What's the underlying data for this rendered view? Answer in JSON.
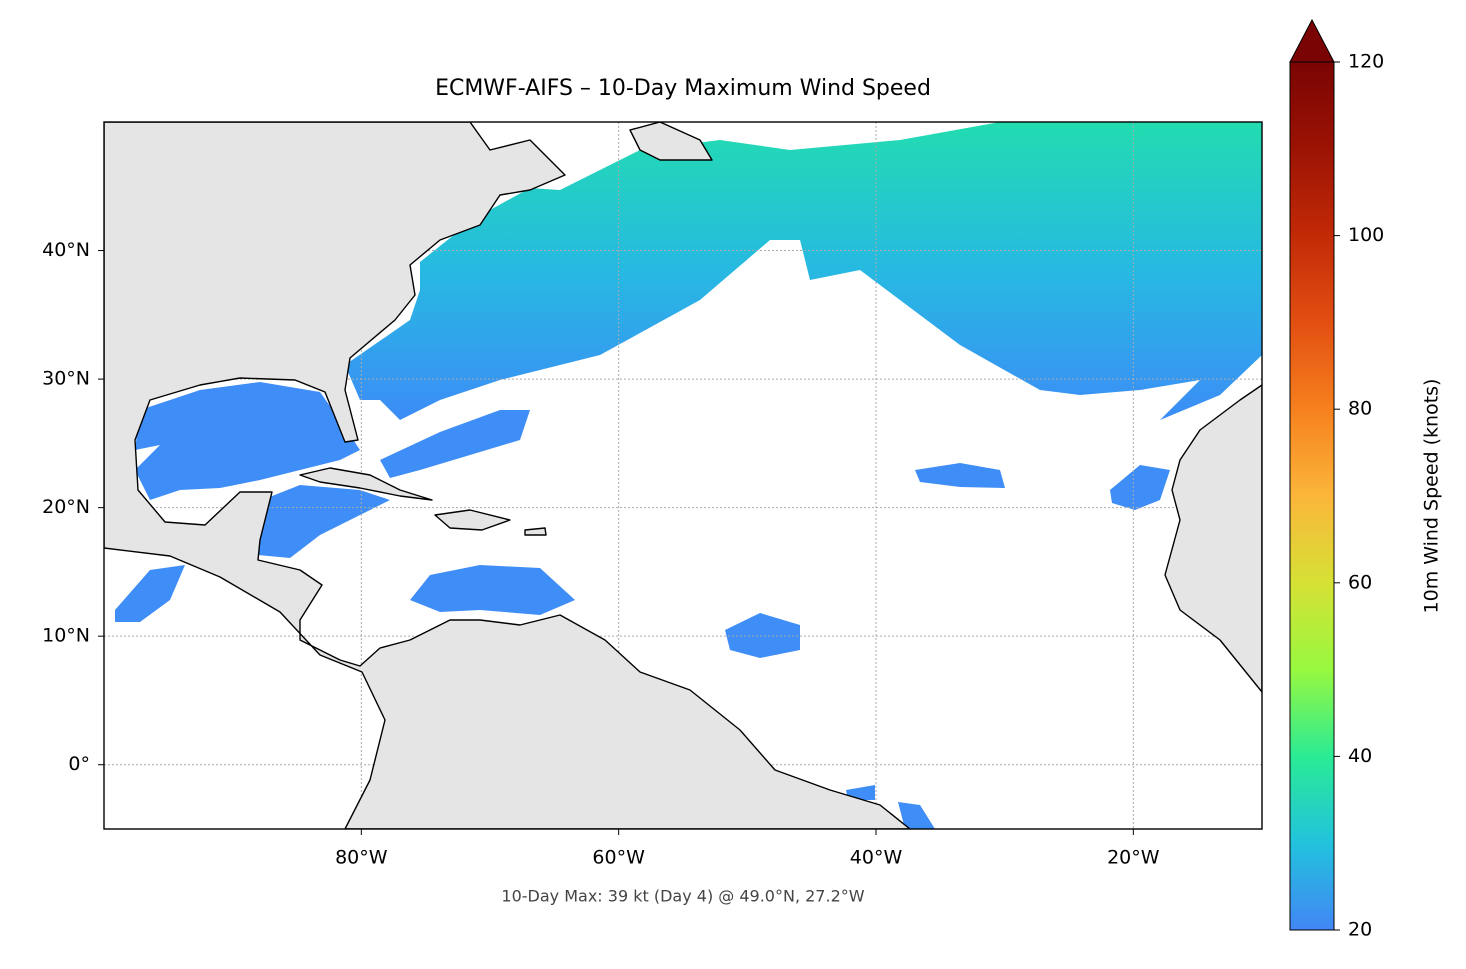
{
  "map": {
    "title": "ECMWF-AIFS – 10-Day Maximum Wind Speed",
    "footnote": "10-Day Max: 39 kt (Day 4) @ 49.0°N, 27.2°W",
    "xlim": [
      -100,
      -10
    ],
    "ylim": [
      -5,
      50
    ],
    "xticks": [
      {
        "value": -80,
        "label": "80°W"
      },
      {
        "value": -60,
        "label": "60°W"
      },
      {
        "value": -40,
        "label": "40°W"
      },
      {
        "value": -20,
        "label": "20°W"
      }
    ],
    "yticks": [
      {
        "value": 0,
        "label": "0°"
      },
      {
        "value": 10,
        "label": "10°N"
      },
      {
        "value": 20,
        "label": "20°N"
      },
      {
        "value": 30,
        "label": "30°N"
      },
      {
        "value": 40,
        "label": "40°N"
      }
    ],
    "grid": true,
    "colorbar": {
      "label": "10m Wind Speed (knots)",
      "lim": [
        20,
        120
      ],
      "ticks": [
        20,
        40,
        60,
        80,
        100,
        120
      ]
    }
  }
}
